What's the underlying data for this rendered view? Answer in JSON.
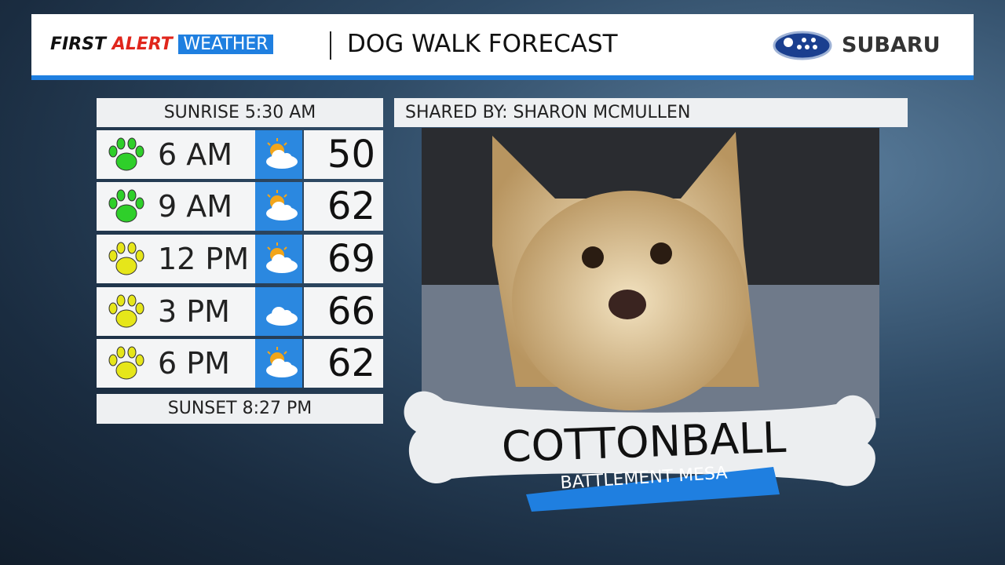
{
  "header": {
    "brand_first": "FIRST",
    "brand_alert": "ALERT",
    "brand_weather": "WEATHER",
    "title": "DOG WALK FORECAST",
    "sponsor": "SUBARU"
  },
  "forecast": {
    "sunrise": "SUNRISE 5:30 AM",
    "rows": [
      {
        "time": "6 AM",
        "temp": 50
      },
      {
        "time": "9 AM",
        "temp": 62
      },
      {
        "time": "12 PM",
        "temp": 69
      },
      {
        "time": "3 PM",
        "temp": 66
      },
      {
        "time": "6 PM",
        "temp": 62
      }
    ],
    "sunset": "SUNSET 8:27 PM"
  },
  "photo": {
    "shared_by": "SHARED BY: SHARON MCMULLEN",
    "name": "COTTONBALL",
    "location": "BATTLEMENT MESA"
  }
}
